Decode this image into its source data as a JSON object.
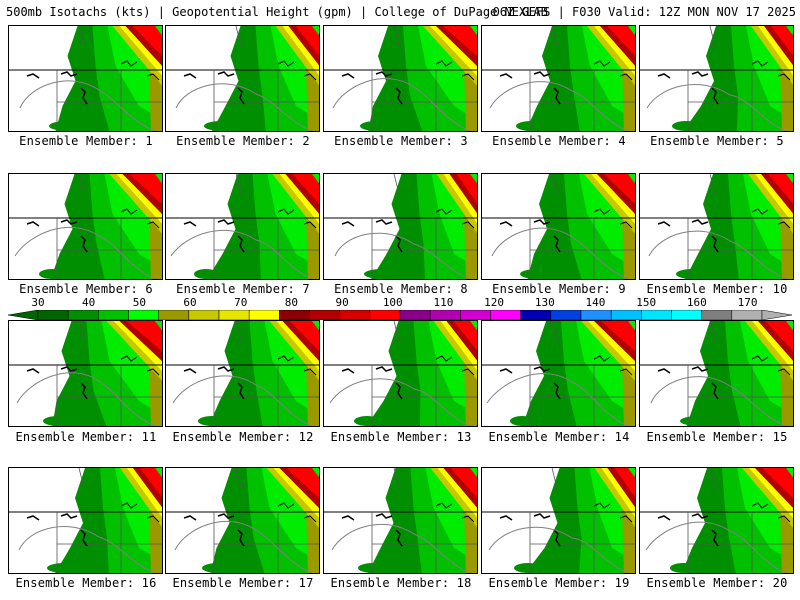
{
  "header": {
    "left": "500mb Isotachs (kts) | Geopotential Height (gpm) | College of DuPage NEXLAB",
    "right": "06Z GEFS | F030 Valid: 12Z MON NOV 17 2025"
  },
  "colorbar": {
    "labels": [
      "30",
      "40",
      "50",
      "60",
      "70",
      "80",
      "90",
      "100",
      "110",
      "120",
      "130",
      "140",
      "150",
      "160",
      "170"
    ],
    "colors": [
      "#006400",
      "#008f00",
      "#00c000",
      "#00ff00",
      "#9a9a00",
      "#c8c800",
      "#e6e600",
      "#ffff00",
      "#8b0000",
      "#b00000",
      "#d40000",
      "#ff0000",
      "#8b008b",
      "#b000b0",
      "#d000d0",
      "#ff00ff",
      "#0000b0",
      "#0040e0",
      "#1e90ff",
      "#00bfff",
      "#00e5ff",
      "#00ffff",
      "#7f7f7f",
      "#b0b0b0"
    ]
  },
  "members": [
    {
      "label": "Ensemble Member: 1"
    },
    {
      "label": "Ensemble Member: 2"
    },
    {
      "label": "Ensemble Member: 3"
    },
    {
      "label": "Ensemble Member: 4"
    },
    {
      "label": "Ensemble Member: 5"
    },
    {
      "label": "Ensemble Member: 6"
    },
    {
      "label": "Ensemble Member: 7"
    },
    {
      "label": "Ensemble Member: 8"
    },
    {
      "label": "Ensemble Member: 9"
    },
    {
      "label": "Ensemble Member: 10"
    },
    {
      "label": "Ensemble Member: 11"
    },
    {
      "label": "Ensemble Member: 12"
    },
    {
      "label": "Ensemble Member: 13"
    },
    {
      "label": "Ensemble Member: 14"
    },
    {
      "label": "Ensemble Member: 15"
    },
    {
      "label": "Ensemble Member: 16"
    },
    {
      "label": "Ensemble Member: 17"
    },
    {
      "label": "Ensemble Member: 18"
    },
    {
      "label": "Ensemble Member: 19"
    },
    {
      "label": "Ensemble Member: 20"
    }
  ]
}
